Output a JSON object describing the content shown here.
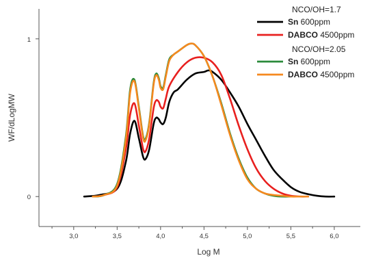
{
  "chart_data": {
    "type": "line",
    "xlabel": "Log M",
    "ylabel": "WF/dLogMW",
    "xlim": [
      2.6,
      6.3
    ],
    "ylim": [
      -0.19,
      1.19
    ],
    "x_ticks": [
      "3,0",
      "3,5",
      "4,0",
      "4,5",
      "5,0",
      "5,5",
      "6,0"
    ],
    "x_tick_values": [
      3.0,
      3.5,
      4.0,
      4.5,
      5.0,
      5.5,
      6.0
    ],
    "x_minor_ticks": [
      2.75,
      3.25,
      3.75,
      4.25,
      4.75,
      5.25,
      5.75
    ],
    "y_ticks": [
      "0",
      "1"
    ],
    "y_tick_values": [
      0,
      1
    ],
    "grid": false,
    "legend_position": "top-right",
    "legend_groups": [
      {
        "title": "NCO/OH=1.7",
        "entries": [
          {
            "bold": "Sn",
            "rest": " 600ppm",
            "color": "#000000",
            "series": 0
          },
          {
            "bold": "DABCO",
            "rest": " 4500ppm",
            "color": "#e8201f",
            "series": 1
          }
        ]
      },
      {
        "title": "NCO/OH=2.05",
        "entries": [
          {
            "bold": "Sn",
            "rest": " 600ppm",
            "color": "#2a8a3a",
            "series": 2
          },
          {
            "bold": "DABCO",
            "rest": " 4500ppm",
            "color": "#f5891f",
            "series": 3
          }
        ]
      }
    ],
    "series": [
      {
        "name": "Sn 600ppm (NCO/OH=1.7)",
        "color": "#000000",
        "x": [
          3.12,
          3.3,
          3.5,
          3.6,
          3.65,
          3.7,
          3.75,
          3.8,
          3.83,
          3.87,
          3.92,
          3.95,
          3.98,
          4.0,
          4.03,
          4.06,
          4.1,
          4.15,
          4.2,
          4.3,
          4.4,
          4.5,
          4.55,
          4.6,
          4.7,
          4.8,
          4.9,
          5.0,
          5.1,
          5.2,
          5.3,
          5.4,
          5.5,
          5.6,
          5.7,
          5.8,
          5.9,
          6.0
        ],
        "y": [
          0.0,
          0.01,
          0.05,
          0.22,
          0.4,
          0.48,
          0.37,
          0.25,
          0.24,
          0.3,
          0.46,
          0.5,
          0.49,
          0.47,
          0.46,
          0.5,
          0.6,
          0.66,
          0.68,
          0.74,
          0.78,
          0.79,
          0.8,
          0.79,
          0.74,
          0.66,
          0.57,
          0.46,
          0.36,
          0.26,
          0.17,
          0.11,
          0.06,
          0.03,
          0.015,
          0.005,
          0.0,
          0.0
        ]
      },
      {
        "name": "DABCO 4500ppm (NCO/OH=1.7)",
        "color": "#e8201f",
        "x": [
          3.22,
          3.35,
          3.5,
          3.6,
          3.65,
          3.7,
          3.75,
          3.8,
          3.83,
          3.87,
          3.92,
          3.95,
          3.98,
          4.0,
          4.03,
          4.06,
          4.1,
          4.2,
          4.3,
          4.4,
          4.5,
          4.6,
          4.7,
          4.8,
          4.9,
          5.0,
          5.1,
          5.2,
          5.3,
          5.4,
          5.5,
          5.6,
          5.7
        ],
        "y": [
          0.0,
          0.01,
          0.06,
          0.3,
          0.52,
          0.59,
          0.45,
          0.3,
          0.29,
          0.37,
          0.56,
          0.61,
          0.6,
          0.57,
          0.56,
          0.62,
          0.7,
          0.79,
          0.85,
          0.88,
          0.88,
          0.85,
          0.77,
          0.62,
          0.45,
          0.3,
          0.18,
          0.1,
          0.05,
          0.02,
          0.005,
          0.0,
          0.0
        ]
      },
      {
        "name": "Sn 600ppm (NCO/OH=2.05)",
        "color": "#2a8a3a",
        "x": [
          3.22,
          3.35,
          3.5,
          3.6,
          3.65,
          3.7,
          3.75,
          3.8,
          3.83,
          3.87,
          3.92,
          3.95,
          3.98,
          4.0,
          4.03,
          4.06,
          4.1,
          4.15,
          4.2,
          4.3,
          4.35,
          4.4,
          4.5,
          4.6,
          4.7,
          4.8,
          4.9,
          5.0,
          5.1,
          5.2,
          5.3,
          5.4,
          5.5
        ],
        "y": [
          0.0,
          0.01,
          0.08,
          0.38,
          0.68,
          0.74,
          0.57,
          0.38,
          0.37,
          0.47,
          0.72,
          0.78,
          0.75,
          0.7,
          0.69,
          0.77,
          0.87,
          0.9,
          0.92,
          0.96,
          0.97,
          0.96,
          0.89,
          0.76,
          0.59,
          0.4,
          0.24,
          0.12,
          0.05,
          0.02,
          0.005,
          0.0,
          0.0
        ]
      },
      {
        "name": "DABCO 4500ppm (NCO/OH=2.05)",
        "color": "#f5891f",
        "x": [
          3.22,
          3.35,
          3.5,
          3.6,
          3.65,
          3.7,
          3.75,
          3.8,
          3.83,
          3.87,
          3.92,
          3.95,
          3.98,
          4.0,
          4.03,
          4.06,
          4.1,
          4.15,
          4.2,
          4.3,
          4.35,
          4.4,
          4.5,
          4.6,
          4.7,
          4.8,
          4.9,
          5.0,
          5.1,
          5.2,
          5.3,
          5.4,
          5.5,
          5.6,
          5.7
        ],
        "y": [
          0.0,
          0.01,
          0.07,
          0.36,
          0.66,
          0.73,
          0.56,
          0.37,
          0.36,
          0.46,
          0.71,
          0.77,
          0.74,
          0.69,
          0.68,
          0.76,
          0.86,
          0.9,
          0.92,
          0.96,
          0.97,
          0.96,
          0.89,
          0.76,
          0.58,
          0.39,
          0.23,
          0.11,
          0.05,
          0.02,
          0.01,
          0.005,
          0.0,
          0.0,
          0.0
        ]
      }
    ]
  }
}
